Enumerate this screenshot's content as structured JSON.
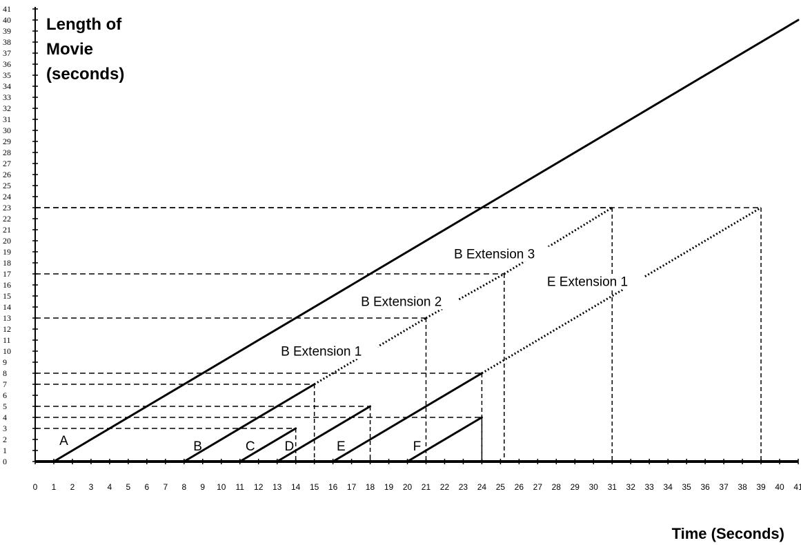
{
  "chart_data": {
    "type": "line",
    "ylabel_lines": [
      "Length of",
      "Movie",
      "(seconds)"
    ],
    "xlabel": "Time (Seconds)",
    "xlim": [
      0,
      41
    ],
    "ylim": [
      0,
      41
    ],
    "x_ticks": [
      0,
      1,
      2,
      3,
      4,
      5,
      6,
      7,
      8,
      9,
      10,
      11,
      12,
      13,
      14,
      15,
      16,
      17,
      18,
      19,
      20,
      21,
      22,
      23,
      24,
      25,
      26,
      27,
      28,
      29,
      30,
      31,
      32,
      33,
      34,
      35,
      36,
      37,
      38,
      39,
      40,
      41
    ],
    "y_ticks": [
      0,
      1,
      2,
      3,
      4,
      5,
      6,
      7,
      8,
      9,
      10,
      11,
      12,
      13,
      14,
      15,
      16,
      17,
      18,
      19,
      20,
      21,
      22,
      23,
      24,
      25,
      26,
      27,
      28,
      29,
      30,
      31,
      32,
      33,
      34,
      35,
      36,
      37,
      38,
      39,
      40,
      41
    ],
    "grid": false,
    "series": [
      {
        "name": "A",
        "style": "solid",
        "x": [
          1,
          41
        ],
        "y": [
          0,
          40
        ]
      },
      {
        "name": "B",
        "style": "solid",
        "x": [
          8,
          15
        ],
        "y": [
          0,
          7
        ]
      },
      {
        "name": "C",
        "style": "solid",
        "x": [
          11,
          14
        ],
        "y": [
          0,
          3
        ]
      },
      {
        "name": "D",
        "style": "solid",
        "x": [
          13,
          18
        ],
        "y": [
          0,
          5
        ]
      },
      {
        "name": "E",
        "style": "solid",
        "x": [
          16,
          24
        ],
        "y": [
          0,
          8
        ]
      },
      {
        "name": "F",
        "style": "solid",
        "x": [
          20,
          24
        ],
        "y": [
          0,
          4
        ]
      },
      {
        "name": "B Extension 1",
        "style": "dotted",
        "x": [
          15,
          21
        ],
        "y": [
          7,
          13
        ]
      },
      {
        "name": "B Extension 2",
        "style": "dotted",
        "x": [
          21,
          25.2
        ],
        "y": [
          13,
          17
        ]
      },
      {
        "name": "B Extension 3",
        "style": "dotted",
        "x": [
          25.2,
          31
        ],
        "y": [
          17,
          23
        ]
      },
      {
        "name": "E Extension 1",
        "style": "dotted",
        "x": [
          24,
          39
        ],
        "y": [
          8,
          23
        ]
      }
    ],
    "guides": [
      {
        "x": 14,
        "y": 3
      },
      {
        "x": 18,
        "y": 5
      },
      {
        "x": 24,
        "y": 4
      },
      {
        "x": 15,
        "y": 7
      },
      {
        "x": 24,
        "y": 8
      },
      {
        "x": 21,
        "y": 13
      },
      {
        "x": 25.2,
        "y": 17
      },
      {
        "x": 31,
        "y": 23
      },
      {
        "x": 39,
        "y": 23
      }
    ],
    "annotations": [
      {
        "text": "A",
        "x": 1.3,
        "y": 1.5
      },
      {
        "text": "B",
        "x": 8.5,
        "y": 1.0
      },
      {
        "text": "C",
        "x": 11.3,
        "y": 1.0
      },
      {
        "text": "D",
        "x": 13.4,
        "y": 1.0
      },
      {
        "text": "E",
        "x": 16.2,
        "y": 1.0
      },
      {
        "text": "F",
        "x": 20.3,
        "y": 1.0
      },
      {
        "text": "B Extension 1",
        "x": 13.2,
        "y": 9.6,
        "bg": true
      },
      {
        "text": "B Extension 2",
        "x": 17.5,
        "y": 14.1,
        "bg": true
      },
      {
        "text": "B Extension 3",
        "x": 22.5,
        "y": 18.4,
        "bg": true
      },
      {
        "text": "E Extension 1",
        "x": 27.5,
        "y": 15.9,
        "bg": true
      }
    ]
  }
}
